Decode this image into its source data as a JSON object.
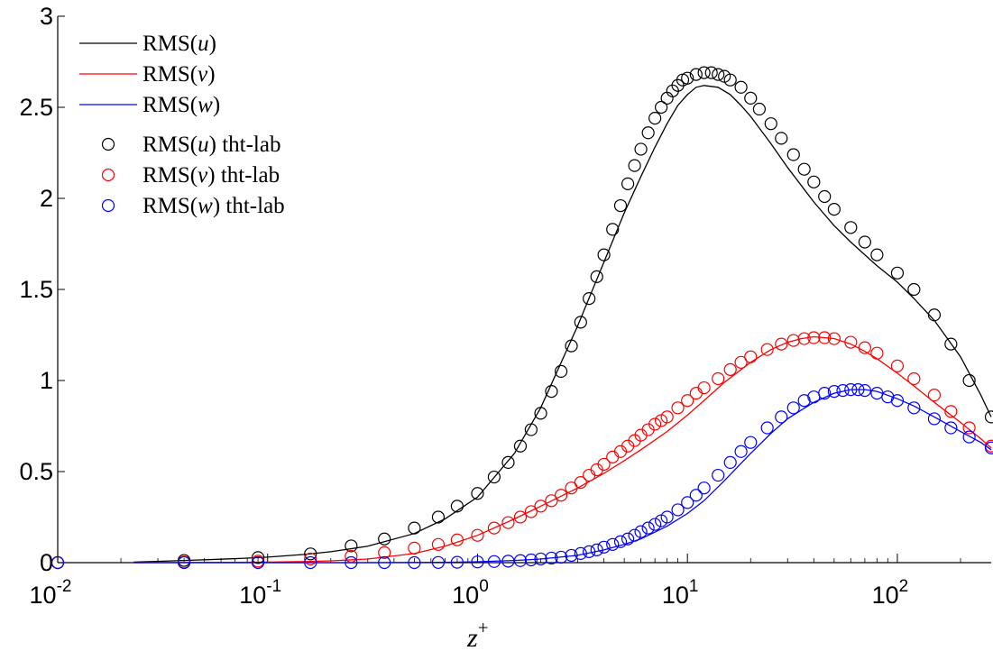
{
  "chart_data": {
    "type": "line",
    "title": "",
    "xlabel": "z",
    "xlabel_sup": "+",
    "ylabel": "",
    "x_scale": "log",
    "xlim": [
      0.01,
      280
    ],
    "ylim": [
      0,
      3
    ],
    "grid": false,
    "legend_position": "top-left",
    "x_ticks": [
      {
        "value": 0.01,
        "base": "10",
        "exp": "-2"
      },
      {
        "value": 0.1,
        "base": "10",
        "exp": "-1"
      },
      {
        "value": 1,
        "base": "10",
        "exp": "0"
      },
      {
        "value": 10,
        "base": "10",
        "exp": "1"
      },
      {
        "value": 100,
        "base": "10",
        "exp": "2"
      }
    ],
    "y_ticks": [
      {
        "value": 0,
        "label": "0"
      },
      {
        "value": 0.5,
        "label": "0.5"
      },
      {
        "value": 1,
        "label": "1"
      },
      {
        "value": 1.5,
        "label": "1.5"
      },
      {
        "value": 2,
        "label": "2"
      },
      {
        "value": 2.5,
        "label": "2.5"
      },
      {
        "value": 3,
        "label": "3"
      }
    ],
    "series": [
      {
        "name": "RMS(u)",
        "label_main": "RMS(",
        "label_var": "u",
        "label_tail": ")",
        "style": "line",
        "color": "#000000",
        "x": [
          0.023,
          0.04,
          0.07,
          0.1,
          0.15,
          0.2,
          0.3,
          0.5,
          0.7,
          1,
          1.5,
          2,
          3,
          4,
          5,
          6,
          7,
          8,
          9,
          10,
          11,
          12,
          14,
          16,
          18,
          20,
          25,
          30,
          40,
          50,
          60,
          70,
          80,
          100,
          120,
          150,
          200,
          250,
          280
        ],
        "y": [
          0.003,
          0.012,
          0.022,
          0.03,
          0.045,
          0.06,
          0.09,
          0.16,
          0.24,
          0.36,
          0.6,
          0.85,
          1.3,
          1.65,
          1.92,
          2.12,
          2.28,
          2.41,
          2.51,
          2.57,
          2.61,
          2.62,
          2.61,
          2.57,
          2.51,
          2.45,
          2.3,
          2.17,
          1.98,
          1.85,
          1.76,
          1.69,
          1.63,
          1.54,
          1.45,
          1.33,
          1.13,
          0.92,
          0.8
        ]
      },
      {
        "name": "RMS(v)",
        "label_main": "RMS(",
        "label_var": "v",
        "label_tail": ")",
        "style": "line",
        "color": "#ff0000",
        "x": [
          0.023,
          0.04,
          0.07,
          0.1,
          0.15,
          0.2,
          0.3,
          0.5,
          0.7,
          1,
          1.5,
          2,
          3,
          4,
          5,
          6,
          8,
          10,
          12,
          15,
          20,
          25,
          30,
          35,
          40,
          50,
          60,
          70,
          80,
          100,
          120,
          150,
          200,
          250,
          280
        ],
        "y": [
          0,
          0.001,
          0.002,
          0.003,
          0.006,
          0.01,
          0.02,
          0.05,
          0.09,
          0.15,
          0.24,
          0.31,
          0.41,
          0.49,
          0.56,
          0.62,
          0.72,
          0.81,
          0.89,
          0.99,
          1.1,
          1.17,
          1.21,
          1.23,
          1.24,
          1.23,
          1.2,
          1.16,
          1.12,
          1.04,
          0.97,
          0.88,
          0.77,
          0.68,
          0.63
        ]
      },
      {
        "name": "RMS(w)",
        "label_main": "RMS(",
        "label_var": "w",
        "label_tail": ")",
        "style": "line",
        "color": "#0000ff",
        "x": [
          0.023,
          0.1,
          0.3,
          0.5,
          0.7,
          1,
          1.5,
          2,
          3,
          4,
          5,
          6,
          8,
          10,
          12,
          15,
          20,
          25,
          30,
          40,
          50,
          60,
          70,
          80,
          100,
          120,
          150,
          200,
          250,
          280
        ],
        "y": [
          0,
          0,
          0,
          0.001,
          0.002,
          0.005,
          0.012,
          0.02,
          0.04,
          0.07,
          0.1,
          0.13,
          0.2,
          0.27,
          0.34,
          0.45,
          0.6,
          0.71,
          0.79,
          0.88,
          0.93,
          0.95,
          0.95,
          0.94,
          0.9,
          0.86,
          0.8,
          0.72,
          0.66,
          0.62
        ]
      },
      {
        "name": "RMS(u) tht-lab",
        "label_main": "RMS(",
        "label_var": "u",
        "label_tail": ") tht-lab",
        "style": "circles",
        "color": "#000000",
        "x": [
          0.01,
          0.04,
          0.09,
          0.16,
          0.25,
          0.36,
          0.5,
          0.65,
          0.8,
          1,
          1.2,
          1.4,
          1.6,
          1.8,
          2,
          2.25,
          2.5,
          2.8,
          3.1,
          3.4,
          3.7,
          4,
          4.4,
          4.8,
          5.2,
          5.6,
          6,
          6.5,
          7,
          7.5,
          8,
          8.5,
          9,
          9.5,
          10,
          11,
          12,
          13,
          14,
          15,
          16,
          18,
          20,
          22,
          25,
          28,
          32,
          36,
          40,
          45,
          50,
          60,
          70,
          80,
          100,
          120,
          150,
          180,
          220,
          280
        ],
        "y": [
          0,
          0.012,
          0.028,
          0.048,
          0.092,
          0.13,
          0.19,
          0.25,
          0.31,
          0.38,
          0.47,
          0.55,
          0.64,
          0.73,
          0.82,
          0.94,
          1.05,
          1.19,
          1.32,
          1.45,
          1.57,
          1.69,
          1.83,
          1.96,
          2.08,
          2.18,
          2.27,
          2.36,
          2.44,
          2.5,
          2.55,
          2.59,
          2.62,
          2.65,
          2.66,
          2.68,
          2.69,
          2.69,
          2.68,
          2.67,
          2.65,
          2.61,
          2.55,
          2.49,
          2.41,
          2.33,
          2.24,
          2.16,
          2.09,
          2.01,
          1.94,
          1.84,
          1.76,
          1.69,
          1.59,
          1.5,
          1.36,
          1.2,
          1.0,
          0.8
        ]
      },
      {
        "name": "RMS(v) tht-lab",
        "label_main": "RMS(",
        "label_var": "v",
        "label_tail": ") tht-lab",
        "style": "circles",
        "color": "#ff0000",
        "x": [
          0.01,
          0.04,
          0.09,
          0.16,
          0.25,
          0.36,
          0.5,
          0.65,
          0.8,
          1,
          1.2,
          1.4,
          1.6,
          1.8,
          2,
          2.25,
          2.5,
          2.8,
          3.1,
          3.4,
          3.7,
          4,
          4.4,
          4.8,
          5.2,
          5.6,
          6,
          6.5,
          7,
          7.5,
          8,
          9,
          10,
          11,
          12,
          14,
          16,
          18,
          20,
          24,
          28,
          32,
          36,
          40,
          45,
          50,
          60,
          70,
          80,
          100,
          120,
          150,
          180,
          220,
          280
        ],
        "y": [
          0,
          0.003,
          0.008,
          0.02,
          0.035,
          0.055,
          0.08,
          0.1,
          0.125,
          0.15,
          0.19,
          0.22,
          0.25,
          0.28,
          0.31,
          0.34,
          0.37,
          0.41,
          0.44,
          0.48,
          0.51,
          0.54,
          0.58,
          0.61,
          0.64,
          0.67,
          0.7,
          0.73,
          0.76,
          0.78,
          0.8,
          0.85,
          0.89,
          0.93,
          0.96,
          1.01,
          1.06,
          1.1,
          1.13,
          1.17,
          1.2,
          1.22,
          1.23,
          1.235,
          1.235,
          1.23,
          1.21,
          1.18,
          1.15,
          1.08,
          1.01,
          0.92,
          0.83,
          0.74,
          0.64
        ]
      },
      {
        "name": "RMS(w) tht-lab",
        "label_main": "RMS(",
        "label_var": "w",
        "label_tail": ") tht-lab",
        "style": "circles",
        "color": "#0000ff",
        "x": [
          0.01,
          0.04,
          0.09,
          0.16,
          0.25,
          0.36,
          0.5,
          0.65,
          0.8,
          1,
          1.2,
          1.4,
          1.6,
          1.8,
          2,
          2.25,
          2.5,
          2.8,
          3.1,
          3.4,
          3.7,
          4,
          4.4,
          4.8,
          5.2,
          5.6,
          6,
          6.5,
          7,
          7.5,
          8,
          9,
          10,
          11,
          12,
          14,
          16,
          18,
          20,
          24,
          28,
          32,
          36,
          40,
          45,
          50,
          55,
          60,
          65,
          70,
          80,
          90,
          100,
          120,
          150,
          180,
          220,
          280
        ],
        "y": [
          0,
          0,
          0,
          0,
          0,
          0,
          0,
          0.001,
          0.002,
          0.004,
          0.006,
          0.008,
          0.011,
          0.015,
          0.02,
          0.025,
          0.03,
          0.04,
          0.05,
          0.06,
          0.07,
          0.085,
          0.1,
          0.115,
          0.13,
          0.15,
          0.17,
          0.19,
          0.21,
          0.23,
          0.25,
          0.29,
          0.33,
          0.37,
          0.41,
          0.48,
          0.55,
          0.61,
          0.66,
          0.74,
          0.8,
          0.85,
          0.89,
          0.91,
          0.93,
          0.94,
          0.945,
          0.95,
          0.95,
          0.945,
          0.93,
          0.91,
          0.89,
          0.85,
          0.79,
          0.74,
          0.69,
          0.63
        ]
      }
    ]
  }
}
